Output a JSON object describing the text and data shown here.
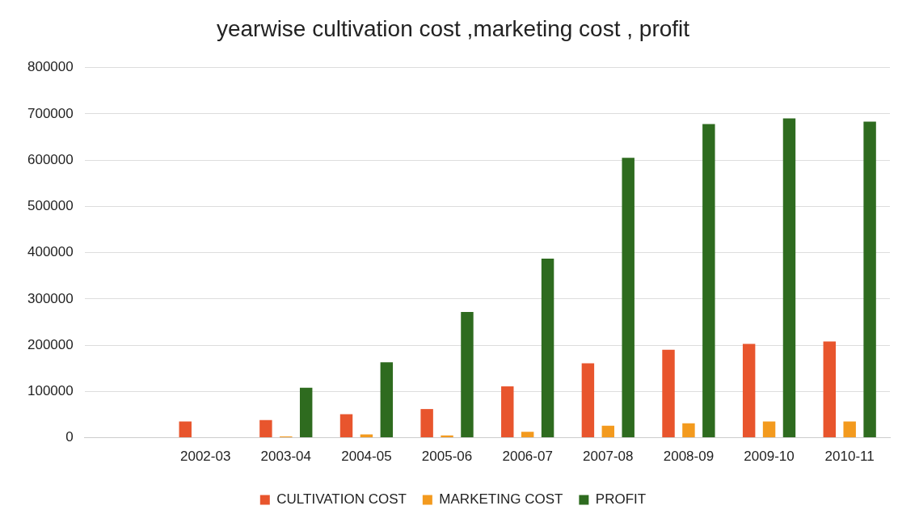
{
  "chart_data": {
    "type": "bar",
    "title": "yearwise cultivation cost ,marketing cost , profit",
    "categories": [
      null,
      "2002-03",
      "2003-04",
      "2004-05",
      "2005-06",
      "2006-07",
      "2007-08",
      "2008-09",
      "2009-10",
      "2010-11"
    ],
    "series": [
      {
        "name": "CULTIVATION COST",
        "color": "#e8552d",
        "values": [
          null,
          35000,
          38000,
          51000,
          62000,
          111000,
          161000,
          190000,
          203000,
          208000
        ]
      },
      {
        "name": "MARKETING COST",
        "color": "#f39a1e",
        "values": [
          null,
          0,
          3000,
          7000,
          5000,
          13000,
          26000,
          31000,
          35000,
          35000
        ]
      },
      {
        "name": "PROFIT",
        "color": "#2e6b1f",
        "values": [
          null,
          0,
          108000,
          163000,
          272000,
          387000,
          605000,
          678000,
          690000,
          683000
        ]
      }
    ],
    "ylim": [
      0,
      800000
    ],
    "yticks": [
      0,
      100000,
      200000,
      300000,
      400000,
      500000,
      600000,
      700000,
      800000
    ],
    "grid": "y",
    "legend": "bottom"
  }
}
